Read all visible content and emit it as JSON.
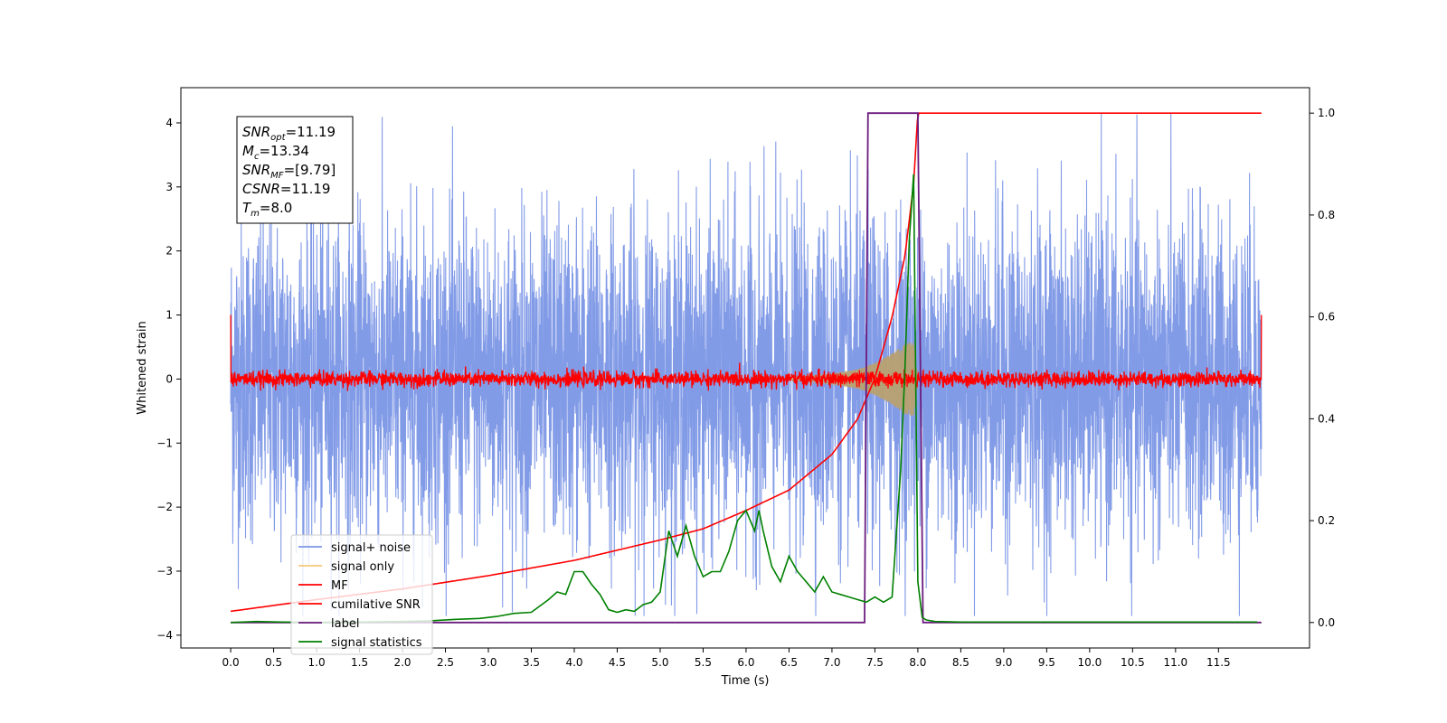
{
  "chart_data": {
    "type": "line",
    "title": "",
    "xlabel": "Time (s)",
    "ylabel": "Whitened strain",
    "y2label": "",
    "xlim": [
      -0.58,
      12.56
    ],
    "ylim": [
      -4.2,
      4.55
    ],
    "y2lim": [
      -0.05,
      1.05
    ],
    "x_ticks": [
      0.0,
      0.5,
      1.0,
      1.5,
      2.0,
      2.5,
      3.0,
      3.5,
      4.0,
      4.5,
      5.0,
      5.5,
      6.0,
      6.5,
      7.0,
      7.5,
      8.0,
      8.5,
      9.0,
      9.5,
      10.0,
      10.5,
      11.0,
      11.5
    ],
    "x_tick_labels": [
      "0.0",
      "0.5",
      "1.0",
      "1.5",
      "2.0",
      "2.5",
      "3.0",
      "3.5",
      "4.0",
      "4.5",
      "5.0",
      "5.5",
      "6.0",
      "6.5",
      "7.0",
      "7.5",
      "8.0",
      "8.5",
      "9.0",
      "9.5",
      "10.0",
      "10.5",
      "11.0",
      "11.5"
    ],
    "y_ticks": [
      -4,
      -3,
      -2,
      -1,
      0,
      1,
      2,
      3,
      4
    ],
    "y_tick_labels": [
      "−4",
      "−3",
      "−2",
      "−1",
      "0",
      "1",
      "2",
      "3",
      "4"
    ],
    "y2_ticks": [
      0.0,
      0.2,
      0.4,
      0.6,
      0.8,
      1.0
    ],
    "y2_tick_labels": [
      "0.0",
      "0.2",
      "0.4",
      "0.6",
      "0.8",
      "1.0"
    ],
    "grid": false,
    "legend_position": "lower-left",
    "annotation": {
      "lines": [
        {
          "label": "SNR",
          "sub": "opt",
          "value": "=11.19"
        },
        {
          "label": "M",
          "sub": "c",
          "value": "=13.34"
        },
        {
          "label": "SNR",
          "sub": "MF",
          "value": "=[9.79]"
        },
        {
          "label": "CSNR",
          "sub": "",
          "value": "=11.19"
        },
        {
          "label": "T",
          "sub": "m",
          "value": "=8.0"
        }
      ]
    },
    "series": [
      {
        "name": "signal+ noise",
        "color": "#7b96e6",
        "axis": "left",
        "kind": "noise",
        "x_range": [
          0.0,
          12.0
        ],
        "sigma": 1.0,
        "range_observed": [
          -3.7,
          4.15
        ]
      },
      {
        "name": "signal only",
        "color": "#f5c87a",
        "axis": "left",
        "kind": "chirp",
        "x": [
          6.5,
          7.0,
          7.3,
          7.5,
          7.7,
          7.85,
          7.95,
          8.0
        ],
        "envelope": [
          0.03,
          0.08,
          0.15,
          0.25,
          0.4,
          0.55,
          0.58,
          0.0
        ]
      },
      {
        "name": "MF",
        "color": "#ff0000",
        "axis": "left",
        "kind": "noise",
        "x_range": [
          0.0,
          12.0
        ],
        "sigma": 0.06,
        "endpoints": [
          1.0,
          1.0
        ]
      },
      {
        "name": "cumilative SNR",
        "color": "#ff0000",
        "axis": "right",
        "x": [
          0.0,
          1.0,
          2.0,
          3.0,
          4.0,
          5.0,
          5.5,
          6.0,
          6.5,
          7.0,
          7.3,
          7.5,
          7.7,
          7.85,
          7.95,
          8.0,
          12.0
        ],
        "values": [
          0.022,
          0.045,
          0.066,
          0.092,
          0.122,
          0.162,
          0.184,
          0.22,
          0.26,
          0.33,
          0.4,
          0.48,
          0.6,
          0.72,
          0.86,
          1.0,
          1.0
        ]
      },
      {
        "name": "label",
        "color": "#6b1c7e",
        "axis": "right",
        "x": [
          0.0,
          7.38,
          7.42,
          7.98,
          8.0,
          8.06,
          8.07,
          12.0
        ],
        "values": [
          0.0,
          0.0,
          1.0,
          1.0,
          1.0,
          0.0,
          0.0,
          0.0
        ]
      },
      {
        "name": "signal statistics",
        "color": "#008000",
        "axis": "right",
        "x": [
          0.0,
          0.3,
          0.6,
          1.0,
          1.5,
          2.0,
          2.3,
          2.6,
          2.9,
          3.1,
          3.3,
          3.5,
          3.7,
          3.8,
          3.9,
          4.0,
          4.1,
          4.2,
          4.3,
          4.4,
          4.5,
          4.6,
          4.7,
          4.8,
          4.9,
          5.0,
          5.1,
          5.2,
          5.3,
          5.4,
          5.5,
          5.6,
          5.7,
          5.8,
          5.9,
          6.0,
          6.1,
          6.15,
          6.2,
          6.3,
          6.4,
          6.5,
          6.6,
          6.7,
          6.8,
          6.9,
          7.0,
          7.1,
          7.2,
          7.3,
          7.4,
          7.5,
          7.6,
          7.7,
          7.8,
          7.85,
          7.9,
          7.95,
          8.0,
          8.05,
          8.1,
          8.2,
          8.5,
          9.0,
          10.0,
          11.0,
          11.95
        ],
        "values": [
          0.0,
          0.002,
          0.001,
          0.0,
          0.001,
          0.002,
          0.003,
          0.006,
          0.008,
          0.012,
          0.018,
          0.02,
          0.045,
          0.06,
          0.055,
          0.1,
          0.1,
          0.075,
          0.055,
          0.025,
          0.02,
          0.025,
          0.022,
          0.035,
          0.04,
          0.06,
          0.18,
          0.13,
          0.19,
          0.13,
          0.09,
          0.1,
          0.1,
          0.14,
          0.2,
          0.22,
          0.18,
          0.22,
          0.18,
          0.11,
          0.08,
          0.13,
          0.1,
          0.08,
          0.06,
          0.09,
          0.06,
          0.055,
          0.05,
          0.045,
          0.04,
          0.05,
          0.04,
          0.05,
          0.3,
          0.5,
          0.75,
          0.88,
          0.08,
          0.01,
          0.005,
          0.002,
          0.001,
          0.001,
          0.001,
          0.001,
          0.001
        ]
      }
    ]
  }
}
